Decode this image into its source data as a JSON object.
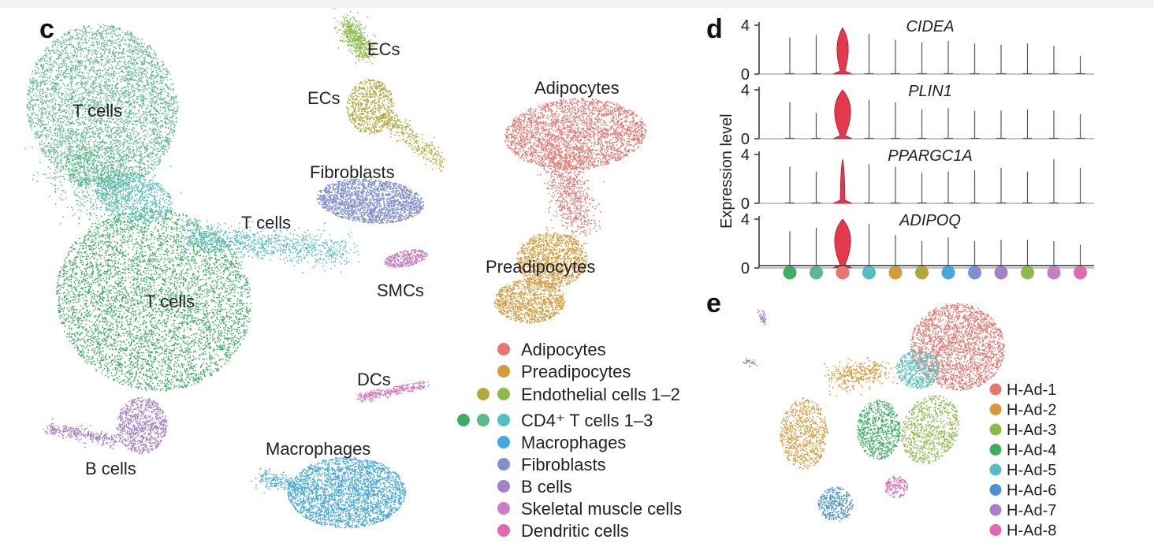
{
  "panels": {
    "c": "c",
    "d": "d",
    "e": "e"
  },
  "colors": {
    "adipocytes": "#e8766f",
    "preadipocytes": "#d79a3a",
    "ec1": "#b2a83b",
    "ec2": "#8dbb4a",
    "t1": "#3fae63",
    "t2": "#5cb98b",
    "t3": "#54bfc2",
    "macrophages": "#44a7df",
    "fibroblasts": "#7f8fd2",
    "bcells": "#a680c7",
    "smc": "#c97dc2",
    "dc": "#e06ab0"
  },
  "umap_c": {
    "labels": {
      "t_cells_top": "T cells",
      "t_cells_mid": "T cells",
      "t_cells_bottom": "T cells",
      "b_cells": "B cells",
      "ecs_top": "ECs",
      "ecs_mid": "ECs",
      "fibroblasts": "Fibroblasts",
      "smcs": "SMCs",
      "dcs": "DCs",
      "macrophages": "Macrophages",
      "adipocytes": "Adipocytes",
      "preadipocytes": "Preadipocytes"
    },
    "legend": [
      "Adipocytes",
      "Preadipocytes",
      "Endothelial cells 1–2",
      "CD4⁺ T cells 1–3",
      "Macrophages",
      "Fibroblasts",
      "B cells",
      "Skeletal muscle cells",
      "Dendritic cells"
    ]
  },
  "chart_data": {
    "type": "violin",
    "ylabel": "Expression level",
    "ylim": [
      0,
      4
    ],
    "yticks": [
      "0",
      "4"
    ],
    "genes": [
      "CIDEA",
      "PLIN1",
      "PPARGC1A",
      "ADIPOQ"
    ],
    "groups": [
      "CD4+ T cells 1",
      "CD4+ T cells 2",
      "Adipocytes",
      "CD4+ T cells 3",
      "Preadipocytes",
      "Endothelial cells 1",
      "Macrophages",
      "Fibroblasts",
      "B cells",
      "Endothelial cells 2",
      "Skeletal muscle cells",
      "Dendritic cells"
    ],
    "group_colors": [
      "#3fae63",
      "#5cb98b",
      "#e8766f",
      "#54bfc2",
      "#d79a3a",
      "#b2a83b",
      "#44a7df",
      "#7f8fd2",
      "#a680c7",
      "#8dbb4a",
      "#c97dc2",
      "#e06ab0"
    ],
    "max_expression": [
      [
        3.0,
        3.2,
        3.8,
        3.3,
        2.8,
        2.6,
        2.7,
        2.5,
        2.4,
        2.5,
        2.3,
        1.5
      ],
      [
        3.0,
        2.1,
        4.0,
        3.2,
        3.0,
        2.4,
        2.5,
        2.3,
        2.3,
        2.4,
        2.3,
        2.0
      ],
      [
        3.0,
        2.6,
        3.6,
        3.2,
        3.0,
        2.5,
        2.6,
        2.7,
        2.9,
        2.6,
        3.6,
        2.9
      ],
      [
        3.0,
        3.3,
        4.0,
        3.6,
        2.7,
        2.2,
        2.5,
        2.2,
        2.3,
        2.3,
        2.2,
        1.9
      ]
    ]
  },
  "umap_e": {
    "legend": [
      "H-Ad-1",
      "H-Ad-2",
      "H-Ad-3",
      "H-Ad-4",
      "H-Ad-5",
      "H-Ad-6",
      "H-Ad-7",
      "H-Ad-8"
    ],
    "colors": [
      "#e8766f",
      "#d79a3a",
      "#8dbb4a",
      "#3fae63",
      "#54bfc2",
      "#4a90d0",
      "#a680c7",
      "#e06ab0"
    ]
  }
}
